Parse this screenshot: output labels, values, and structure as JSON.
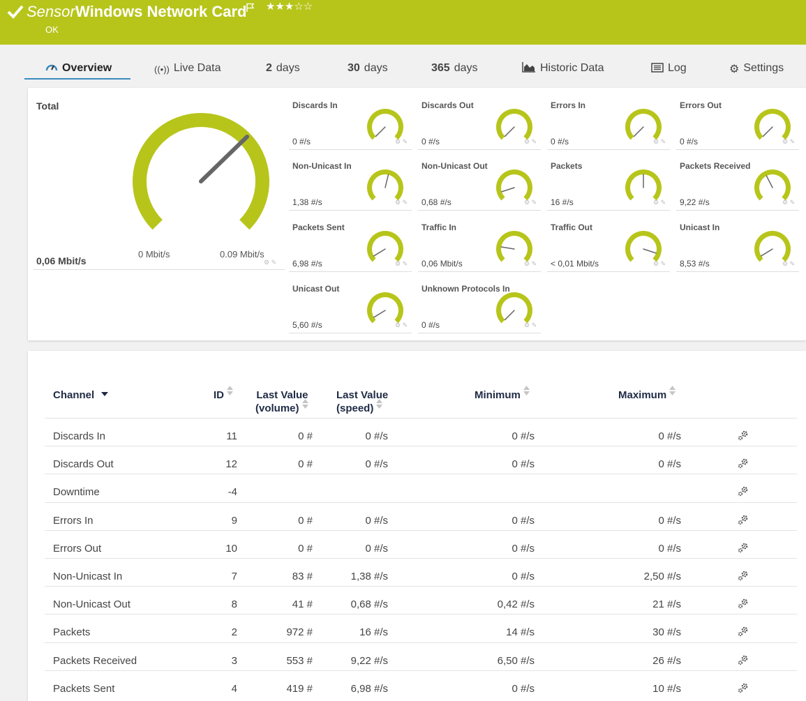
{
  "header": {
    "title_prefix": "Sensor",
    "title_name": "Windows Network Card",
    "stars": "★★★☆☆",
    "status": "OK",
    "colors": {
      "accent": "#b7c51b",
      "gauge": "#b7c51b",
      "needle": "#666666"
    }
  },
  "tabs": [
    {
      "label": "Overview",
      "icon": "overview-gauge-icon",
      "active": true
    },
    {
      "label": "Live Data",
      "icon": "broadcast-icon"
    },
    {
      "num": "2",
      "label": "days"
    },
    {
      "num": "30",
      "label": "days"
    },
    {
      "num": "365",
      "label": "days"
    },
    {
      "label": "Historic Data",
      "icon": "area-chart-icon"
    },
    {
      "label": "Log",
      "icon": "log-icon"
    },
    {
      "label": "Settings",
      "icon": "gear-icon"
    }
  ],
  "overview": {
    "total": {
      "label": "Total",
      "value": "0,06 Mbit/s",
      "min_label": "0 Mbit/s",
      "max_label": "0.09 Mbit/s",
      "needle_fraction": 0.67
    },
    "gauges": [
      {
        "label": "Discards In",
        "value": "0 #/s",
        "needle_fraction": 0.0
      },
      {
        "label": "Discards Out",
        "value": "0 #/s",
        "needle_fraction": 0.0
      },
      {
        "label": "Errors In",
        "value": "0 #/s",
        "needle_fraction": 0.0
      },
      {
        "label": "Errors Out",
        "value": "0 #/s",
        "needle_fraction": 0.0
      },
      {
        "label": "Non-Unicast In",
        "value": "1,38 #/s",
        "needle_fraction": 0.55
      },
      {
        "label": "Non-Unicast Out",
        "value": "0,68 #/s",
        "needle_fraction": 0.1
      },
      {
        "label": "Packets",
        "value": "16 #/s",
        "needle_fraction": 0.5
      },
      {
        "label": "Packets Received",
        "value": "9,22 #/s",
        "needle_fraction": 0.4
      },
      {
        "label": "Packets Sent",
        "value": "6,98 #/s",
        "needle_fraction": 0.05
      },
      {
        "label": "Traffic In",
        "value": "0,06 Mbit/s",
        "needle_fraction": 0.2
      },
      {
        "label": "Traffic Out",
        "value": "< 0,01 Mbit/s",
        "needle_fraction": 0.9
      },
      {
        "label": "Unicast In",
        "value": "8,53 #/s",
        "needle_fraction": 0.05
      },
      {
        "label": "Unicast Out",
        "value": "5,60 #/s",
        "needle_fraction": 0.05
      },
      {
        "label": "Unknown Protocols In",
        "value": "0 #/s",
        "needle_fraction": 0.0
      }
    ]
  },
  "table": {
    "headers": {
      "channel": "Channel",
      "id": "ID",
      "last_volume_1": "Last Value",
      "last_volume_2": "(volume)",
      "last_speed_1": "Last Value",
      "last_speed_2": "(speed)",
      "minimum": "Minimum",
      "maximum": "Maximum"
    },
    "rows": [
      {
        "channel": "Discards In",
        "id": "11",
        "volume": "0 #",
        "speed": "0 #/s",
        "min": "0 #/s",
        "max": "0 #/s"
      },
      {
        "channel": "Discards Out",
        "id": "12",
        "volume": "0 #",
        "speed": "0 #/s",
        "min": "0 #/s",
        "max": "0 #/s"
      },
      {
        "channel": "Downtime",
        "id": "-4",
        "volume": "",
        "speed": "",
        "min": "",
        "max": ""
      },
      {
        "channel": "Errors In",
        "id": "9",
        "volume": "0 #",
        "speed": "0 #/s",
        "min": "0 #/s",
        "max": "0 #/s"
      },
      {
        "channel": "Errors Out",
        "id": "10",
        "volume": "0 #",
        "speed": "0 #/s",
        "min": "0 #/s",
        "max": "0 #/s"
      },
      {
        "channel": "Non-Unicast In",
        "id": "7",
        "volume": "83 #",
        "speed": "1,38 #/s",
        "min": "0 #/s",
        "max": "2,50 #/s"
      },
      {
        "channel": "Non-Unicast Out",
        "id": "8",
        "volume": "41 #",
        "speed": "0,68 #/s",
        "min": "0,42 #/s",
        "max": "21 #/s"
      },
      {
        "channel": "Packets",
        "id": "2",
        "volume": "972 #",
        "speed": "16 #/s",
        "min": "14 #/s",
        "max": "30 #/s"
      },
      {
        "channel": "Packets Received",
        "id": "3",
        "volume": "553 #",
        "speed": "9,22 #/s",
        "min": "6,50 #/s",
        "max": "26 #/s"
      },
      {
        "channel": "Packets Sent",
        "id": "4",
        "volume": "419 #",
        "speed": "6,98 #/s",
        "min": "0 #/s",
        "max": "10 #/s"
      }
    ]
  }
}
